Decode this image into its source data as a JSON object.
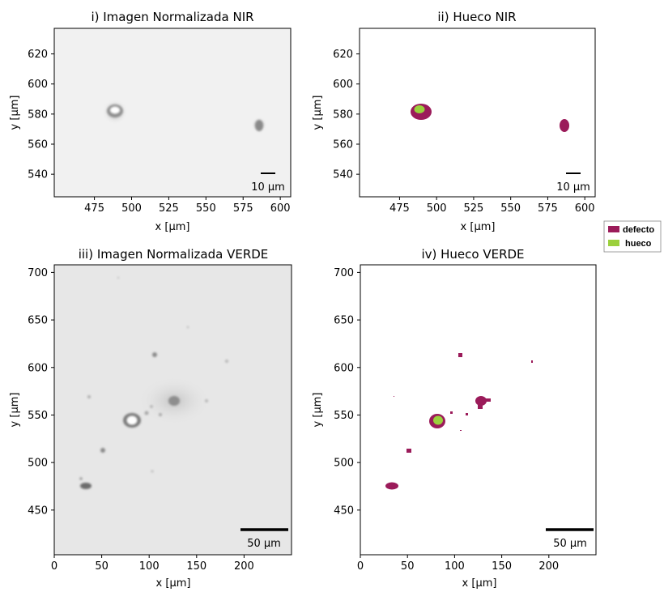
{
  "colors": {
    "defecto": "#9b1b5a",
    "hueco": "#9bd03c",
    "nir_background": "#f1f1f1",
    "verde_background": "#e7e7e7",
    "axes": "#000000"
  },
  "legend": {
    "placement": "right-middle",
    "items": [
      {
        "label": "defecto",
        "color": "#9b1b5a"
      },
      {
        "label": "hueco",
        "color": "#9bd03c"
      }
    ]
  },
  "chart_data": [
    {
      "type": "heatmap",
      "title": "i) Imagen Normalizada NIR",
      "xlabel": "x [µm]",
      "ylabel": "y [µm]",
      "xlim": [
        448,
        607
      ],
      "ylim": [
        525,
        637
      ],
      "xticks": [
        475,
        500,
        525,
        550,
        575,
        600
      ],
      "yticks": [
        540,
        560,
        580,
        600,
        620
      ],
      "colormap": "gray",
      "scalebar": {
        "length": 10,
        "label": "10 µm"
      },
      "features": [
        {
          "kind": "ring",
          "x": 493,
          "y": 581
        },
        {
          "kind": "blob",
          "x": 589,
          "y": 573
        }
      ]
    },
    {
      "type": "heatmap",
      "title": "ii) Hueco NIR",
      "xlabel": "x [µm]",
      "ylabel": "y [µm]",
      "xlim": [
        448,
        607
      ],
      "ylim": [
        525,
        637
      ],
      "xticks": [
        475,
        500,
        525,
        550,
        575,
        600
      ],
      "yticks": [
        540,
        560,
        580,
        600,
        620
      ],
      "colormap": "mask",
      "scalebar": {
        "length": 10,
        "label": "10 µm"
      },
      "features": [
        {
          "class": "defecto",
          "x": 493,
          "y": 581
        },
        {
          "class": "hueco",
          "x": 493,
          "y": 583
        },
        {
          "class": "defecto",
          "x": 589,
          "y": 573
        }
      ]
    },
    {
      "type": "heatmap",
      "title": "iii) Imagen Normalizada VERDE",
      "xlabel": "x [µm]",
      "ylabel": "y [µm]",
      "xlim": [
        0,
        250
      ],
      "ylim": [
        403,
        708
      ],
      "xticks": [
        0,
        50,
        100,
        150,
        200
      ],
      "yticks": [
        450,
        500,
        550,
        600,
        650,
        700
      ],
      "colormap": "gray",
      "scalebar": {
        "length": 50,
        "label": "50 µm"
      },
      "features": [
        {
          "kind": "ring",
          "x": 82,
          "y": 541
        },
        {
          "kind": "blob",
          "x": 126,
          "y": 565
        },
        {
          "kind": "blob",
          "x": 105,
          "y": 611
        },
        {
          "kind": "blob",
          "x": 51,
          "y": 511
        },
        {
          "kind": "blob",
          "x": 34,
          "y": 474
        }
      ]
    },
    {
      "type": "heatmap",
      "title": "iv) Hueco VERDE",
      "xlabel": "x [µm]",
      "ylabel": "y [µm]",
      "xlim": [
        0,
        250
      ],
      "ylim": [
        403,
        708
      ],
      "xticks": [
        0,
        50,
        100,
        150,
        200
      ],
      "yticks": [
        450,
        500,
        550,
        600,
        650,
        700
      ],
      "colormap": "mask",
      "scalebar": {
        "length": 50,
        "label": "50 µm"
      },
      "features": [
        {
          "class": "defecto",
          "x": 81,
          "y": 542
        },
        {
          "class": "hueco",
          "x": 82,
          "y": 543
        },
        {
          "class": "defecto",
          "x": 127,
          "y": 563
        },
        {
          "class": "defecto",
          "x": 105,
          "y": 612
        },
        {
          "class": "defecto",
          "x": 51,
          "y": 512
        },
        {
          "class": "defecto",
          "x": 34,
          "y": 474
        },
        {
          "class": "defecto",
          "x": 98,
          "y": 550
        },
        {
          "class": "defecto",
          "x": 111,
          "y": 549
        },
        {
          "class": "defecto",
          "x": 180,
          "y": 606
        }
      ]
    }
  ]
}
